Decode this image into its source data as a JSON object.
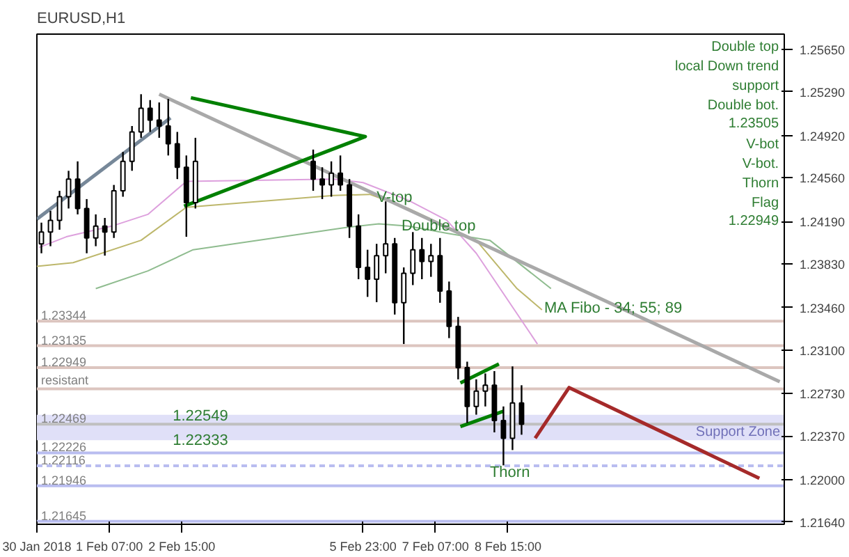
{
  "chart_data": {
    "type": "candlestick",
    "title": "EURUSD,H1",
    "xlim": [
      "2018-01-30T23:00",
      "2018-02-13T17:00"
    ],
    "ylim": [
      1.2162,
      1.2578
    ],
    "xticks": [
      {
        "value": "2018-01-30T23:00",
        "label": "30 Jan 2018"
      },
      {
        "value": "2018-02-01T07:00",
        "label": "1 Feb 07:00"
      },
      {
        "value": "2018-02-02T15:00",
        "label": "2 Feb 15:00"
      },
      {
        "value": "2018-02-05T23:00",
        "label": "5 Feb 23:00"
      },
      {
        "value": "2018-02-07T07:00",
        "label": "7 Feb 07:00"
      },
      {
        "value": "2018-02-08T15:00",
        "label": "8 Feb 15:00"
      }
    ],
    "yticks": [
      {
        "value": 1.2565,
        "label": "1.25650"
      },
      {
        "value": 1.2529,
        "label": "1.25290"
      },
      {
        "value": 1.2492,
        "label": "1.24920"
      },
      {
        "value": 1.2456,
        "label": "1.24560"
      },
      {
        "value": 1.2419,
        "label": "1.24190"
      },
      {
        "value": 1.2383,
        "label": "1.23830"
      },
      {
        "value": 1.2346,
        "label": "1.23460"
      },
      {
        "value": 1.231,
        "label": "1.23100"
      },
      {
        "value": 1.2273,
        "label": "1.22730"
      },
      {
        "value": 1.2237,
        "label": "1.22370"
      },
      {
        "value": 1.22,
        "label": "1.22000"
      },
      {
        "value": 1.2164,
        "label": "1.21640"
      }
    ],
    "series": [
      {
        "color": "#000000",
        "x": [
          "2018-01-31T01:00",
          "2018-01-31T05:00",
          "2018-01-31T09:00",
          "2018-01-31T13:00",
          "2018-01-31T17:00",
          "2018-01-31T21:00",
          "2018-02-01T01:00",
          "2018-02-01T05:00",
          "2018-02-01T09:00",
          "2018-02-01T13:00",
          "2018-02-01T17:00",
          "2018-02-01T21:00",
          "2018-02-02T01:00",
          "2018-02-02T05:00",
          "2018-02-02T09:00",
          "2018-02-02T13:00",
          "2018-02-02T17:00",
          "2018-02-02T21:00",
          "2018-02-05T01:00",
          "2018-02-05T05:00",
          "2018-02-05T09:00",
          "2018-02-05T13:00",
          "2018-02-05T17:00",
          "2018-02-05T21:00",
          "2018-02-06T01:00",
          "2018-02-06T05:00",
          "2018-02-06T09:00",
          "2018-02-06T13:00",
          "2018-02-06T17:00",
          "2018-02-06T21:00",
          "2018-02-07T01:00",
          "2018-02-07T05:00",
          "2018-02-07T09:00",
          "2018-02-07T13:00",
          "2018-02-07T17:00",
          "2018-02-07T21:00",
          "2018-02-08T01:00",
          "2018-02-08T05:00",
          "2018-02-08T09:00",
          "2018-02-08T13:00",
          "2018-02-08T17:00",
          "2018-02-08T21:00"
        ],
        "ohlc": [
          [
            1.24,
            1.2418,
            1.2392,
            1.241
          ],
          [
            1.241,
            1.2428,
            1.2398,
            1.242
          ],
          [
            1.242,
            1.2445,
            1.2412,
            1.244
          ],
          [
            1.244,
            1.2462,
            1.243,
            1.2455
          ],
          [
            1.2455,
            1.247,
            1.2425,
            1.243
          ],
          [
            1.243,
            1.2438,
            1.2392,
            1.2405
          ],
          [
            1.2405,
            1.2425,
            1.2398,
            1.2415
          ],
          [
            1.2415,
            1.2422,
            1.239,
            1.241
          ],
          [
            1.241,
            1.245,
            1.2405,
            1.2445
          ],
          [
            1.2445,
            1.2478,
            1.244,
            1.247
          ],
          [
            1.247,
            1.25,
            1.2462,
            1.2495
          ],
          [
            1.2495,
            1.2527,
            1.249,
            1.2515
          ],
          [
            1.2515,
            1.2522,
            1.2495,
            1.2505
          ],
          [
            1.2505,
            1.252,
            1.249,
            1.25
          ],
          [
            1.25,
            1.2523,
            1.2475,
            1.2485
          ],
          [
            1.2485,
            1.2495,
            1.2455,
            1.2465
          ],
          [
            1.2465,
            1.2475,
            1.2406,
            1.2435
          ],
          [
            1.2435,
            1.249,
            1.243,
            1.247
          ],
          [
            1.247,
            1.248,
            1.2445,
            1.2455
          ],
          [
            1.2455,
            1.2465,
            1.2438,
            1.245
          ],
          [
            1.245,
            1.247,
            1.244,
            1.246
          ],
          [
            1.246,
            1.2475,
            1.2445,
            1.245
          ],
          [
            1.245,
            1.2455,
            1.2405,
            1.2415
          ],
          [
            1.2415,
            1.2425,
            1.237,
            1.238
          ],
          [
            1.238,
            1.2395,
            1.2355,
            1.237
          ],
          [
            1.237,
            1.24,
            1.23505,
            1.239
          ],
          [
            1.239,
            1.2436,
            1.2375,
            1.24
          ],
          [
            1.24,
            1.2405,
            1.234,
            1.235
          ],
          [
            1.235,
            1.238,
            1.2315,
            1.2375
          ],
          [
            1.2375,
            1.241,
            1.2365,
            1.2395
          ],
          [
            1.2395,
            1.2405,
            1.237,
            1.2385
          ],
          [
            1.2385,
            1.24,
            1.2372,
            1.239
          ],
          [
            1.239,
            1.2405,
            1.235,
            1.236
          ],
          [
            1.236,
            1.2368,
            1.232,
            1.233
          ],
          [
            1.233,
            1.2338,
            1.2285,
            1.2295
          ],
          [
            1.2295,
            1.23,
            1.2248,
            1.2262
          ],
          [
            1.2262,
            1.2285,
            1.2255,
            1.2275
          ],
          [
            1.2275,
            1.229,
            1.2262,
            1.228
          ],
          [
            1.228,
            1.2292,
            1.224,
            1.225
          ],
          [
            1.225,
            1.2262,
            1.2212,
            1.2235
          ],
          [
            1.2235,
            1.2296,
            1.2225,
            1.2265
          ],
          [
            1.2265,
            1.228,
            1.2238,
            1.22469
          ]
        ]
      },
      {
        "type": "line",
        "color": "#dda0dd",
        "x": [
          "2018-01-31T00:00",
          "2018-01-31T12:00",
          "2018-02-01T08:00",
          "2018-02-02T00:00",
          "2018-02-02T17:00",
          "2018-02-05T10:00",
          "2018-02-05T23:00",
          "2018-02-06T19:00",
          "2018-02-07T12:00",
          "2018-02-08T01:00",
          "2018-02-09T04:00"
        ],
        "values": [
          1.2397,
          1.2406,
          1.2415,
          1.2425,
          1.2453,
          1.2455,
          1.2452,
          1.2437,
          1.242,
          1.2392,
          1.2315
        ]
      },
      {
        "type": "line",
        "color": "#bdb76b",
        "x": [
          "2018-01-30T23:00",
          "2018-01-31T15:00",
          "2018-02-01T21:00",
          "2018-02-02T17:00",
          "2018-02-05T10:00",
          "2018-02-06T02:00",
          "2018-02-06T19:00",
          "2018-02-08T01:00",
          "2018-02-08T19:00",
          "2018-02-09T06:00"
        ],
        "values": [
          1.2381,
          1.2384,
          1.2403,
          1.2431,
          1.2441,
          1.2442,
          1.243,
          1.2403,
          1.2362,
          1.2344
        ]
      },
      {
        "type": "line",
        "color": "#8fbc8f",
        "x": [
          "2018-02-01T01:00",
          "2018-02-02T00:00",
          "2018-02-02T20:00",
          "2018-02-05T16:00",
          "2018-02-06T06:00",
          "2018-02-06T19:00",
          "2018-02-07T12:00",
          "2018-02-08T07:00",
          "2018-02-09T10:00"
        ],
        "values": [
          1.2362,
          1.2377,
          1.2395,
          1.2414,
          1.2417,
          1.2415,
          1.2409,
          1.2403,
          1.2362
        ]
      },
      {
        "type": "line",
        "color": "#a9a9a9",
        "x": [
          "2018-02-02T05:00",
          "2018-02-13T15:00"
        ],
        "values": [
          1.2527,
          1.2283
        ]
      },
      {
        "type": "line",
        "color": "#778899",
        "x": [
          "2018-01-30T23:00",
          "2018-02-02T10:00"
        ],
        "values": [
          1.2421,
          1.2507
        ]
      },
      {
        "type": "line",
        "color": "#008000",
        "x": [
          "2018-02-02T19:00",
          "2018-02-06T00:00",
          "2018-02-02T16:00"
        ],
        "values": [
          1.2524,
          1.2491,
          1.2432
        ]
      },
      {
        "type": "line",
        "color": "#008000",
        "x": [
          "2018-02-07T18:00",
          "2018-02-08T11:00"
        ],
        "values": [
          1.2282,
          1.2298
        ]
      },
      {
        "type": "line",
        "color": "#008000",
        "x": [
          "2018-02-07T18:00",
          "2018-02-08T13:00"
        ],
        "values": [
          1.2245,
          1.2258
        ]
      },
      {
        "type": "line",
        "color": "#a52a2a",
        "x": [
          "2018-02-09T03:00",
          "2018-02-09T18:00",
          "2018-02-13T06:00"
        ],
        "values": [
          1.2235,
          1.2278,
          1.2201
        ]
      }
    ],
    "ref_lines": [
      {
        "axis": "y",
        "value": 1.23344,
        "label": "1.23344",
        "color": "#dcc5bf"
      },
      {
        "axis": "y",
        "value": 1.23135,
        "label": "1.23135",
        "color": "#dcc5bf"
      },
      {
        "axis": "y",
        "value": 1.22949,
        "label": "1.22949",
        "color": "#dcc5bf"
      },
      {
        "axis": "y",
        "value": 1.2277,
        "label": "resistant",
        "color": "#dcc5bf"
      },
      {
        "axis": "y",
        "value": 1.22469,
        "label": "1.22469",
        "color": "#c0c0c0"
      },
      {
        "axis": "y",
        "value": 1.22226,
        "label": "1.22226",
        "color": "#b9bdf0"
      },
      {
        "axis": "y",
        "value": 1.22116,
        "label": "1.22116",
        "color": "#b9bdf0",
        "line_style": "dashed"
      },
      {
        "axis": "y",
        "value": 1.21946,
        "label": "1.21946",
        "color": "#b9bdf0"
      },
      {
        "axis": "y",
        "value": 1.21645,
        "label": "1.21645",
        "color": "#b9bdf0"
      }
    ],
    "bands": [
      {
        "axis": "y",
        "from": 1.22333,
        "to": 1.22549,
        "label": "Support Zone",
        "color": "#e0e0f8"
      }
    ],
    "annotations": [
      {
        "text": "V-top",
        "x": "2018-02-06T05:00",
        "y": 1.2439
      },
      {
        "text": "Double top",
        "x": "2018-02-06T16:00",
        "y": 1.2415
      },
      {
        "text": "MA Fibo - 34; 55; 89",
        "x": "2018-02-09T07:00",
        "y": 1.2345
      },
      {
        "text": "Thorn",
        "x": "2018-02-08T07:00",
        "y": 1.2206
      },
      {
        "text": "1.22549",
        "x": "2018-02-02T11:00",
        "y": 1.2255
      },
      {
        "text": "1.22333",
        "x": "2018-02-02T11:00",
        "y": 1.2234
      },
      "Double top",
      "local Down trend",
      "support",
      "Double bot.",
      "1.23505",
      "V-bot",
      "V-bot.",
      "Thorn",
      "Flag",
      "1.22949"
    ]
  }
}
